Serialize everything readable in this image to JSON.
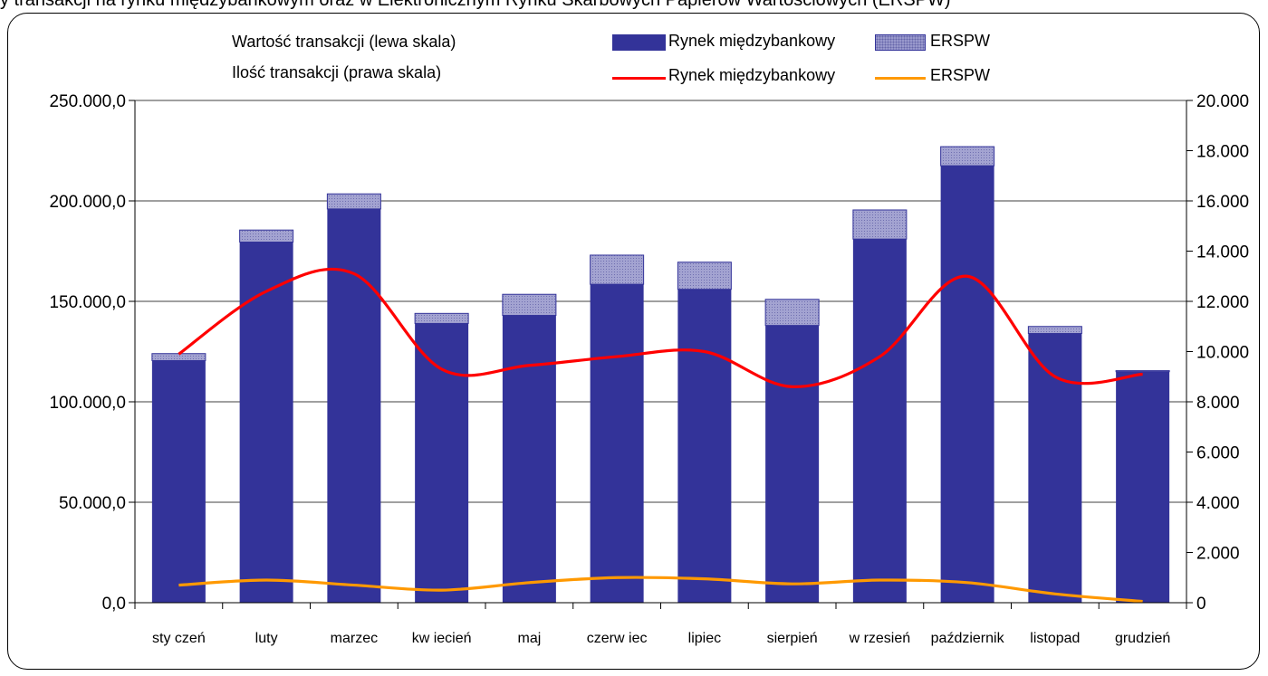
{
  "caption_cut": "y transakcji na rynku międzybankowym oraz w Elektronicznym Rynku Skarbowych Papierów Wartościowych (ERSPW)",
  "legend": {
    "value_caption": "Wartość transakcji (lewa skala)",
    "count_caption": "Ilość transakcji (prawa skala)",
    "bar_interbank": "Rynek międzybankowy",
    "bar_erspw": "ERSPW",
    "line_interbank": "Rynek międzybankowy",
    "line_erspw": "ERSPW"
  },
  "colors": {
    "interbank_bar": "#333399",
    "erspw_bar": "#9999cc",
    "interbank_line": "#ff0000",
    "erspw_line": "#ff9900"
  },
  "chart_data": {
    "type": "bar",
    "stacked": true,
    "categories": [
      "styczeń",
      "luty",
      "marzec",
      "kwiecień",
      "maj",
      "czerwiec",
      "lipiec",
      "sierpień",
      "wrzesień",
      "październik",
      "listopad",
      "grudzień"
    ],
    "category_labels": [
      "sty czeń",
      "luty",
      "marzec",
      "kw iecień",
      "maj",
      "czerw iec",
      "lipiec",
      "sierpień",
      "w rzesień",
      "październik",
      "listopad",
      "grudzień"
    ],
    "series": [
      {
        "name": "Rynek międzybankowy",
        "axis": "left",
        "kind": "bar",
        "values": [
          120500,
          179500,
          196000,
          139000,
          143000,
          158500,
          156000,
          138000,
          181000,
          217500,
          134000,
          115000
        ]
      },
      {
        "name": "ERSPW",
        "axis": "left",
        "kind": "bar",
        "values": [
          3500,
          6000,
          7500,
          5000,
          10500,
          14500,
          13500,
          13000,
          14500,
          9500,
          3500,
          500
        ]
      },
      {
        "name": "Rynek międzybankowy",
        "axis": "right",
        "kind": "line",
        "values": [
          9900,
          12400,
          13100,
          9300,
          9450,
          9800,
          10000,
          8600,
          9800,
          13000,
          9000,
          9100
        ]
      },
      {
        "name": "ERSPW",
        "axis": "right",
        "kind": "line",
        "values": [
          700,
          900,
          700,
          500,
          800,
          1000,
          950,
          750,
          900,
          800,
          350,
          50
        ]
      }
    ],
    "yleft": {
      "min": 0,
      "max": 250000,
      "step": 50000,
      "tick_labels": [
        "0,0",
        "50.000,0",
        "100.000,0",
        "150.000,0",
        "200.000,0",
        "250.000,0"
      ]
    },
    "yright": {
      "min": 0,
      "max": 20000,
      "step": 2000,
      "tick_labels": [
        "0",
        "2.000",
        "4.000",
        "6.000",
        "8.000",
        "10.000",
        "12.000",
        "14.000",
        "16.000",
        "18.000",
        "20.000"
      ]
    },
    "grid": true,
    "legend_position": "top"
  }
}
